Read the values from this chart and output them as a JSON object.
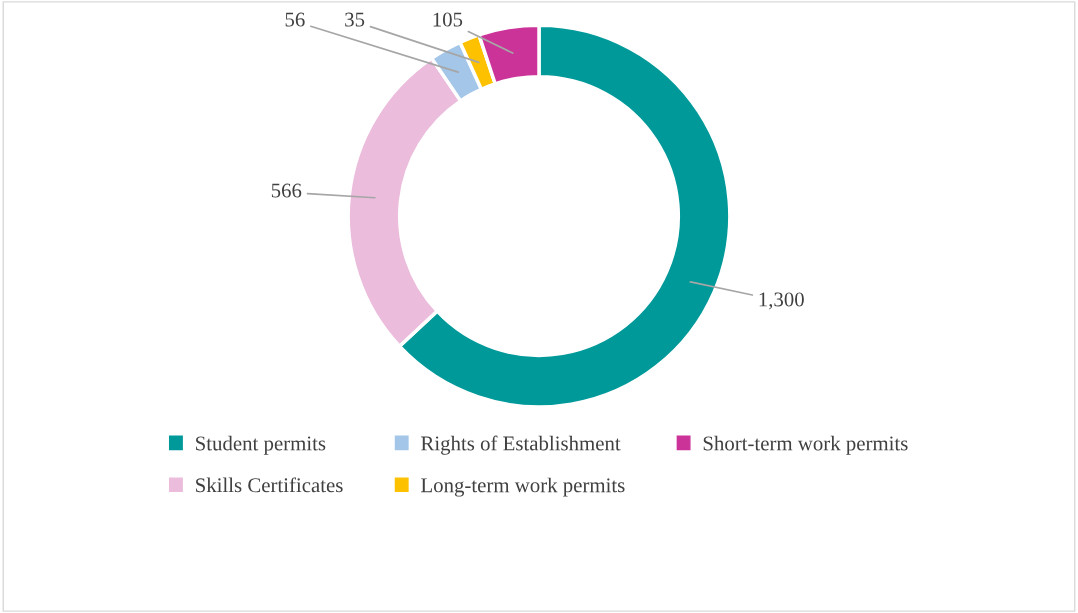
{
  "chart_data": {
    "type": "donut",
    "categories": [
      "Student permits",
      "Skills Certificates",
      "Rights of Establishment",
      "Long-term work permits",
      "Short-term work permits"
    ],
    "values": [
      1300,
      566,
      56,
      35,
      105
    ],
    "colors": [
      "#00999a",
      "#ebbcdc",
      "#a4c6e8",
      "#fdc100",
      "#cc3399"
    ],
    "value_labels": [
      "1,300",
      "566",
      "56",
      "35",
      "105"
    ],
    "legend": "bottom"
  }
}
